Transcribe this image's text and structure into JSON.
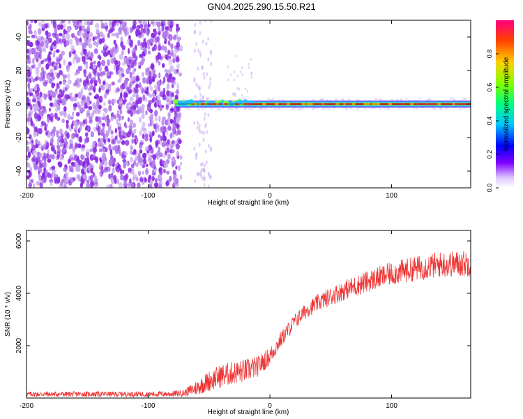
{
  "title": "GN04.2025.290.15.50.R21",
  "colors": {
    "background": "#ffffff",
    "noise_purple": "#8a2be2",
    "noise_light": "#c8a8f0",
    "snr_line": "#ee3333",
    "signal_core": "#ff2020"
  },
  "chart_data": [
    {
      "type": "heatmap",
      "title": "GN04.2025.290.15.50.R21",
      "xlabel": "Height of straight line (km)",
      "ylabel": "Frequency (Hz)",
      "xlim": [
        -200,
        165
      ],
      "ylim": [
        -50,
        50
      ],
      "xticks": [
        -200,
        -100,
        0,
        100
      ],
      "xtick_labels": [
        "-200",
        "-100",
        "0",
        "100"
      ],
      "yticks": [
        -40,
        -20,
        0,
        20,
        40
      ],
      "ytick_labels": [
        "-40",
        "-20",
        "0",
        "20",
        "40"
      ],
      "noise_region_x": [
        -200,
        -73
      ],
      "signal_frequency_hz": 0,
      "signal_start_km": -78,
      "colorbar": {
        "label": "Normalized spectral amplitude",
        "range": [
          0,
          1
        ],
        "ticks": [
          0,
          0.2,
          0.4,
          0.6,
          0.8
        ],
        "tick_labels": [
          "0.0",
          "0.2",
          "0.4",
          "0.6",
          "0.8"
        ]
      }
    },
    {
      "type": "line",
      "xlabel": "Height of straight line (km)",
      "ylabel": "SNR (10 * v/v)",
      "xlim": [
        -200,
        165
      ],
      "ylim": [
        0,
        6400
      ],
      "xticks": [
        -200,
        -100,
        0,
        100
      ],
      "xtick_labels": [
        "-200",
        "-100",
        "0",
        "100"
      ],
      "yticks": [
        2000,
        4000,
        6000
      ],
      "ytick_labels": [
        "2000",
        "4000",
        "6000"
      ],
      "series": [
        {
          "name": "SNR",
          "x": [
            -200,
            -150,
            -100,
            -80,
            -70,
            -60,
            -50,
            -40,
            -30,
            -20,
            -10,
            0,
            10,
            20,
            30,
            40,
            60,
            80,
            100,
            120,
            140,
            165
          ],
          "y": [
            150,
            150,
            150,
            160,
            200,
            400,
            650,
            850,
            950,
            1050,
            1200,
            1600,
            2300,
            2900,
            3350,
            3650,
            4100,
            4450,
            4750,
            4950,
            5100,
            5150
          ],
          "noise_amplitude": [
            100,
            100,
            100,
            110,
            140,
            300,
            400,
            450,
            450,
            450,
            400,
            350,
            300,
            300,
            300,
            330,
            380,
            420,
            450,
            480,
            500,
            520
          ]
        }
      ]
    }
  ]
}
